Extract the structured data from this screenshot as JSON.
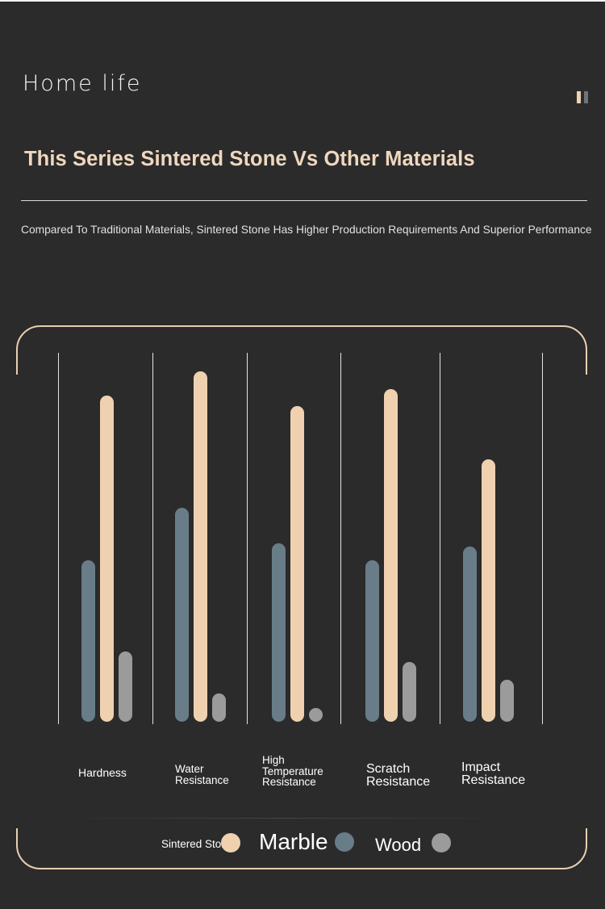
{
  "header": {
    "brand": "Home life",
    "headline": "This Series Sintered Stone Vs Other Materials",
    "subtitle": "Compared To Traditional Materials, Sintered Stone Has Higher Production Requirements And Superior Performance"
  },
  "colors": {
    "background": "#2b2b2b",
    "sintered_stone": "#efd1b0",
    "marble": "#687d88",
    "wood": "#9b9b9b",
    "accent": "#e8cfb1"
  },
  "legend": {
    "sintered_stone": "Sintered Stone",
    "marble": "Marble",
    "wood": "Wood"
  },
  "chart_data": {
    "type": "bar",
    "title": "",
    "xlabel": "",
    "ylabel": "",
    "ylim": [
      0,
      100
    ],
    "grid": false,
    "legend_position": "bottom",
    "categories": [
      "Hardness",
      "Water Resistance",
      "High Temperature Resistance",
      "Scratch Resistance",
      "Impact Resistance"
    ],
    "series": [
      {
        "name": "Marble",
        "values": [
          46,
          61,
          51,
          46,
          50
        ]
      },
      {
        "name": "Sintered Stone",
        "values": [
          93,
          100,
          90,
          95,
          75
        ]
      },
      {
        "name": "Wood",
        "values": [
          20,
          8,
          3,
          17,
          12
        ]
      }
    ]
  }
}
